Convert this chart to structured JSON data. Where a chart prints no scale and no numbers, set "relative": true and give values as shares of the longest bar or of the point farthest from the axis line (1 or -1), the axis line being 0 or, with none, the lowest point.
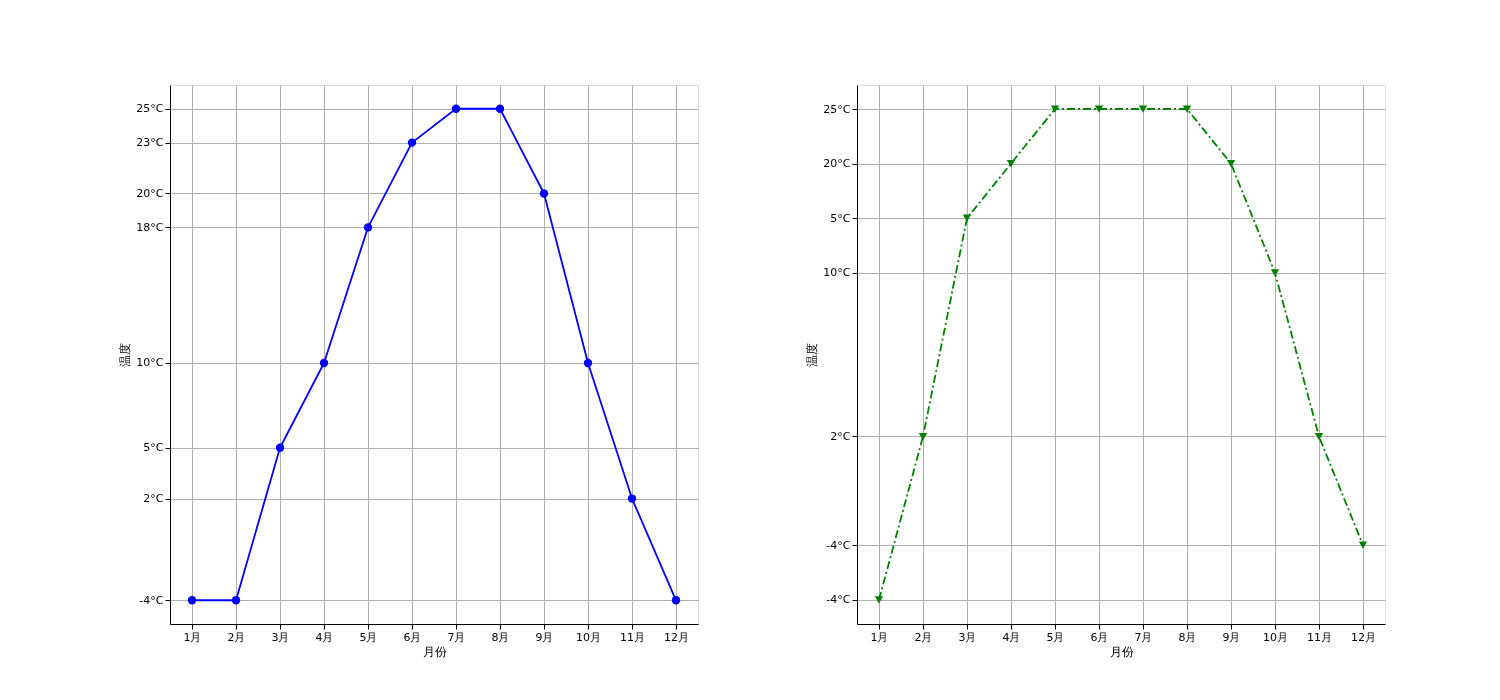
{
  "chart_data": [
    {
      "type": "line",
      "xlabel": "月份",
      "ylabel": "温度",
      "categories": [
        "1月",
        "2月",
        "3月",
        "4月",
        "5月",
        "6月",
        "7月",
        "8月",
        "9月",
        "10月",
        "11月",
        "12月"
      ],
      "series": [
        {
          "color": "#0000ff",
          "values": [
            -4,
            -4,
            5,
            10,
            18,
            23,
            25,
            25,
            20,
            10,
            2,
            -4
          ]
        }
      ],
      "ylim": [
        -5.4,
        26.4
      ],
      "yticks": [
        {
          "value": -4,
          "label": "-4°C"
        },
        {
          "value": 2,
          "label": "2°C"
        },
        {
          "value": 5,
          "label": "5°C"
        },
        {
          "value": 10,
          "label": "10°C"
        },
        {
          "value": 18,
          "label": "18°C"
        },
        {
          "value": 20,
          "label": "20°C"
        },
        {
          "value": 23,
          "label": "23°C"
        },
        {
          "value": 25,
          "label": "25°C"
        }
      ],
      "grid": true,
      "marker": "circle",
      "line_style": "solid"
    },
    {
      "type": "line",
      "xlabel": "月份",
      "ylabel": "温度",
      "categories": [
        "1月",
        "2月",
        "3月",
        "4月",
        "5月",
        "6月",
        "7月",
        "8月",
        "9月",
        "10月",
        "11月",
        "12月"
      ],
      "y_categories": [
        "25°C",
        "20°C",
        "5°C",
        "10°C",
        null,
        null,
        "2°C",
        null,
        "-4°C",
        "-4°C"
      ],
      "relative": true,
      "series": [
        {
          "color": "#008000",
          "values": [
            0.047,
            0.364,
            0.788,
            0.894,
            1,
            1,
            1,
            1,
            0.894,
            0.682,
            0.364,
            0.153
          ]
        }
      ],
      "grid": true,
      "marker": "triangle",
      "line_style": "dashed"
    }
  ]
}
